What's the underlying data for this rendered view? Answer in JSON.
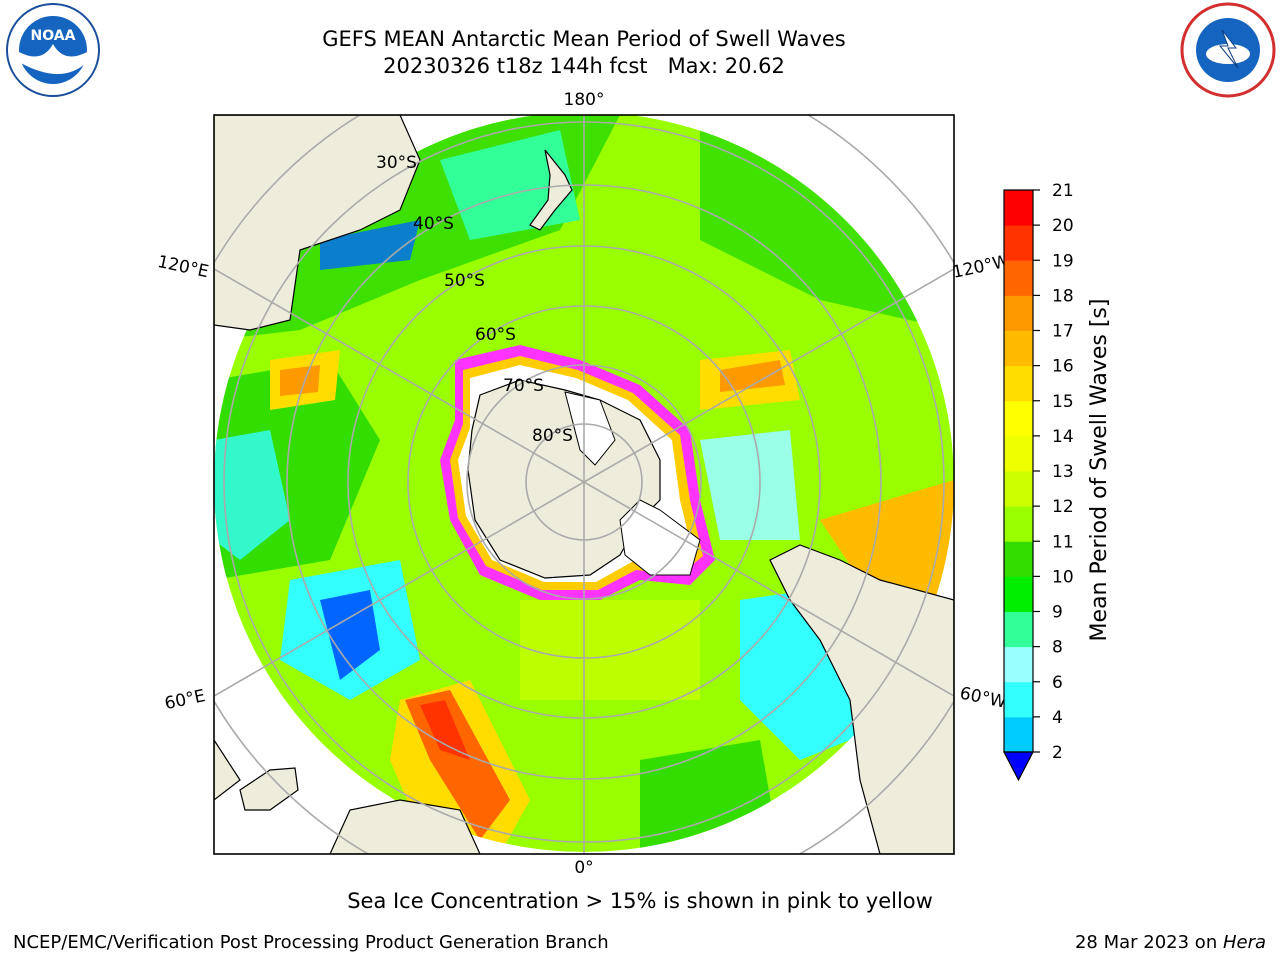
{
  "title": {
    "line1": "GEFS MEAN Antarctic Mean Period of Swell Waves",
    "line2": "20230326 t18z 144h fcst   Max: 20.62"
  },
  "map": {
    "projection": "south-polar-stereographic",
    "longitude_labels": {
      "top": "180°",
      "bottom": "0°",
      "left_upper": "120°E",
      "left_lower": "60°E",
      "right_upper": "120°W",
      "right_lower": "60°W"
    },
    "latitude_labels": [
      "30°S",
      "40°S",
      "50°S",
      "60°S",
      "70°S",
      "80°S"
    ],
    "land_color": "#eeeddc",
    "sea_ice_colors": [
      "#ff33ff",
      "#ffcc00",
      "#ffffff"
    ]
  },
  "colorbar": {
    "label": "Mean Period of Swell Waves [s]",
    "ticks": [
      "2",
      "4",
      "6",
      "8",
      "9",
      "10",
      "11",
      "12",
      "13",
      "14",
      "15",
      "16",
      "17",
      "18",
      "19",
      "20",
      "21"
    ],
    "colors": [
      "#0066ff",
      "#00ccff",
      "#33ffff",
      "#99ffff",
      "#33ff99",
      "#00ee00",
      "#33dd00",
      "#99ff00",
      "#ccff00",
      "#eeff00",
      "#ffff00",
      "#ffdd00",
      "#ffbb00",
      "#ff9900",
      "#ff6600",
      "#ff3300",
      "#ff0000"
    ],
    "under_color": "#0000ff"
  },
  "note": "Sea Ice Concentration > 15% is shown in pink to yellow",
  "footer": {
    "left": "NCEP/EMC/Verification Post Processing Product Generation Branch",
    "date": "28 Mar 2023 on ",
    "host": "Hera"
  },
  "logos": {
    "left": "noaa-logo",
    "right": "national-weather-service-logo"
  }
}
